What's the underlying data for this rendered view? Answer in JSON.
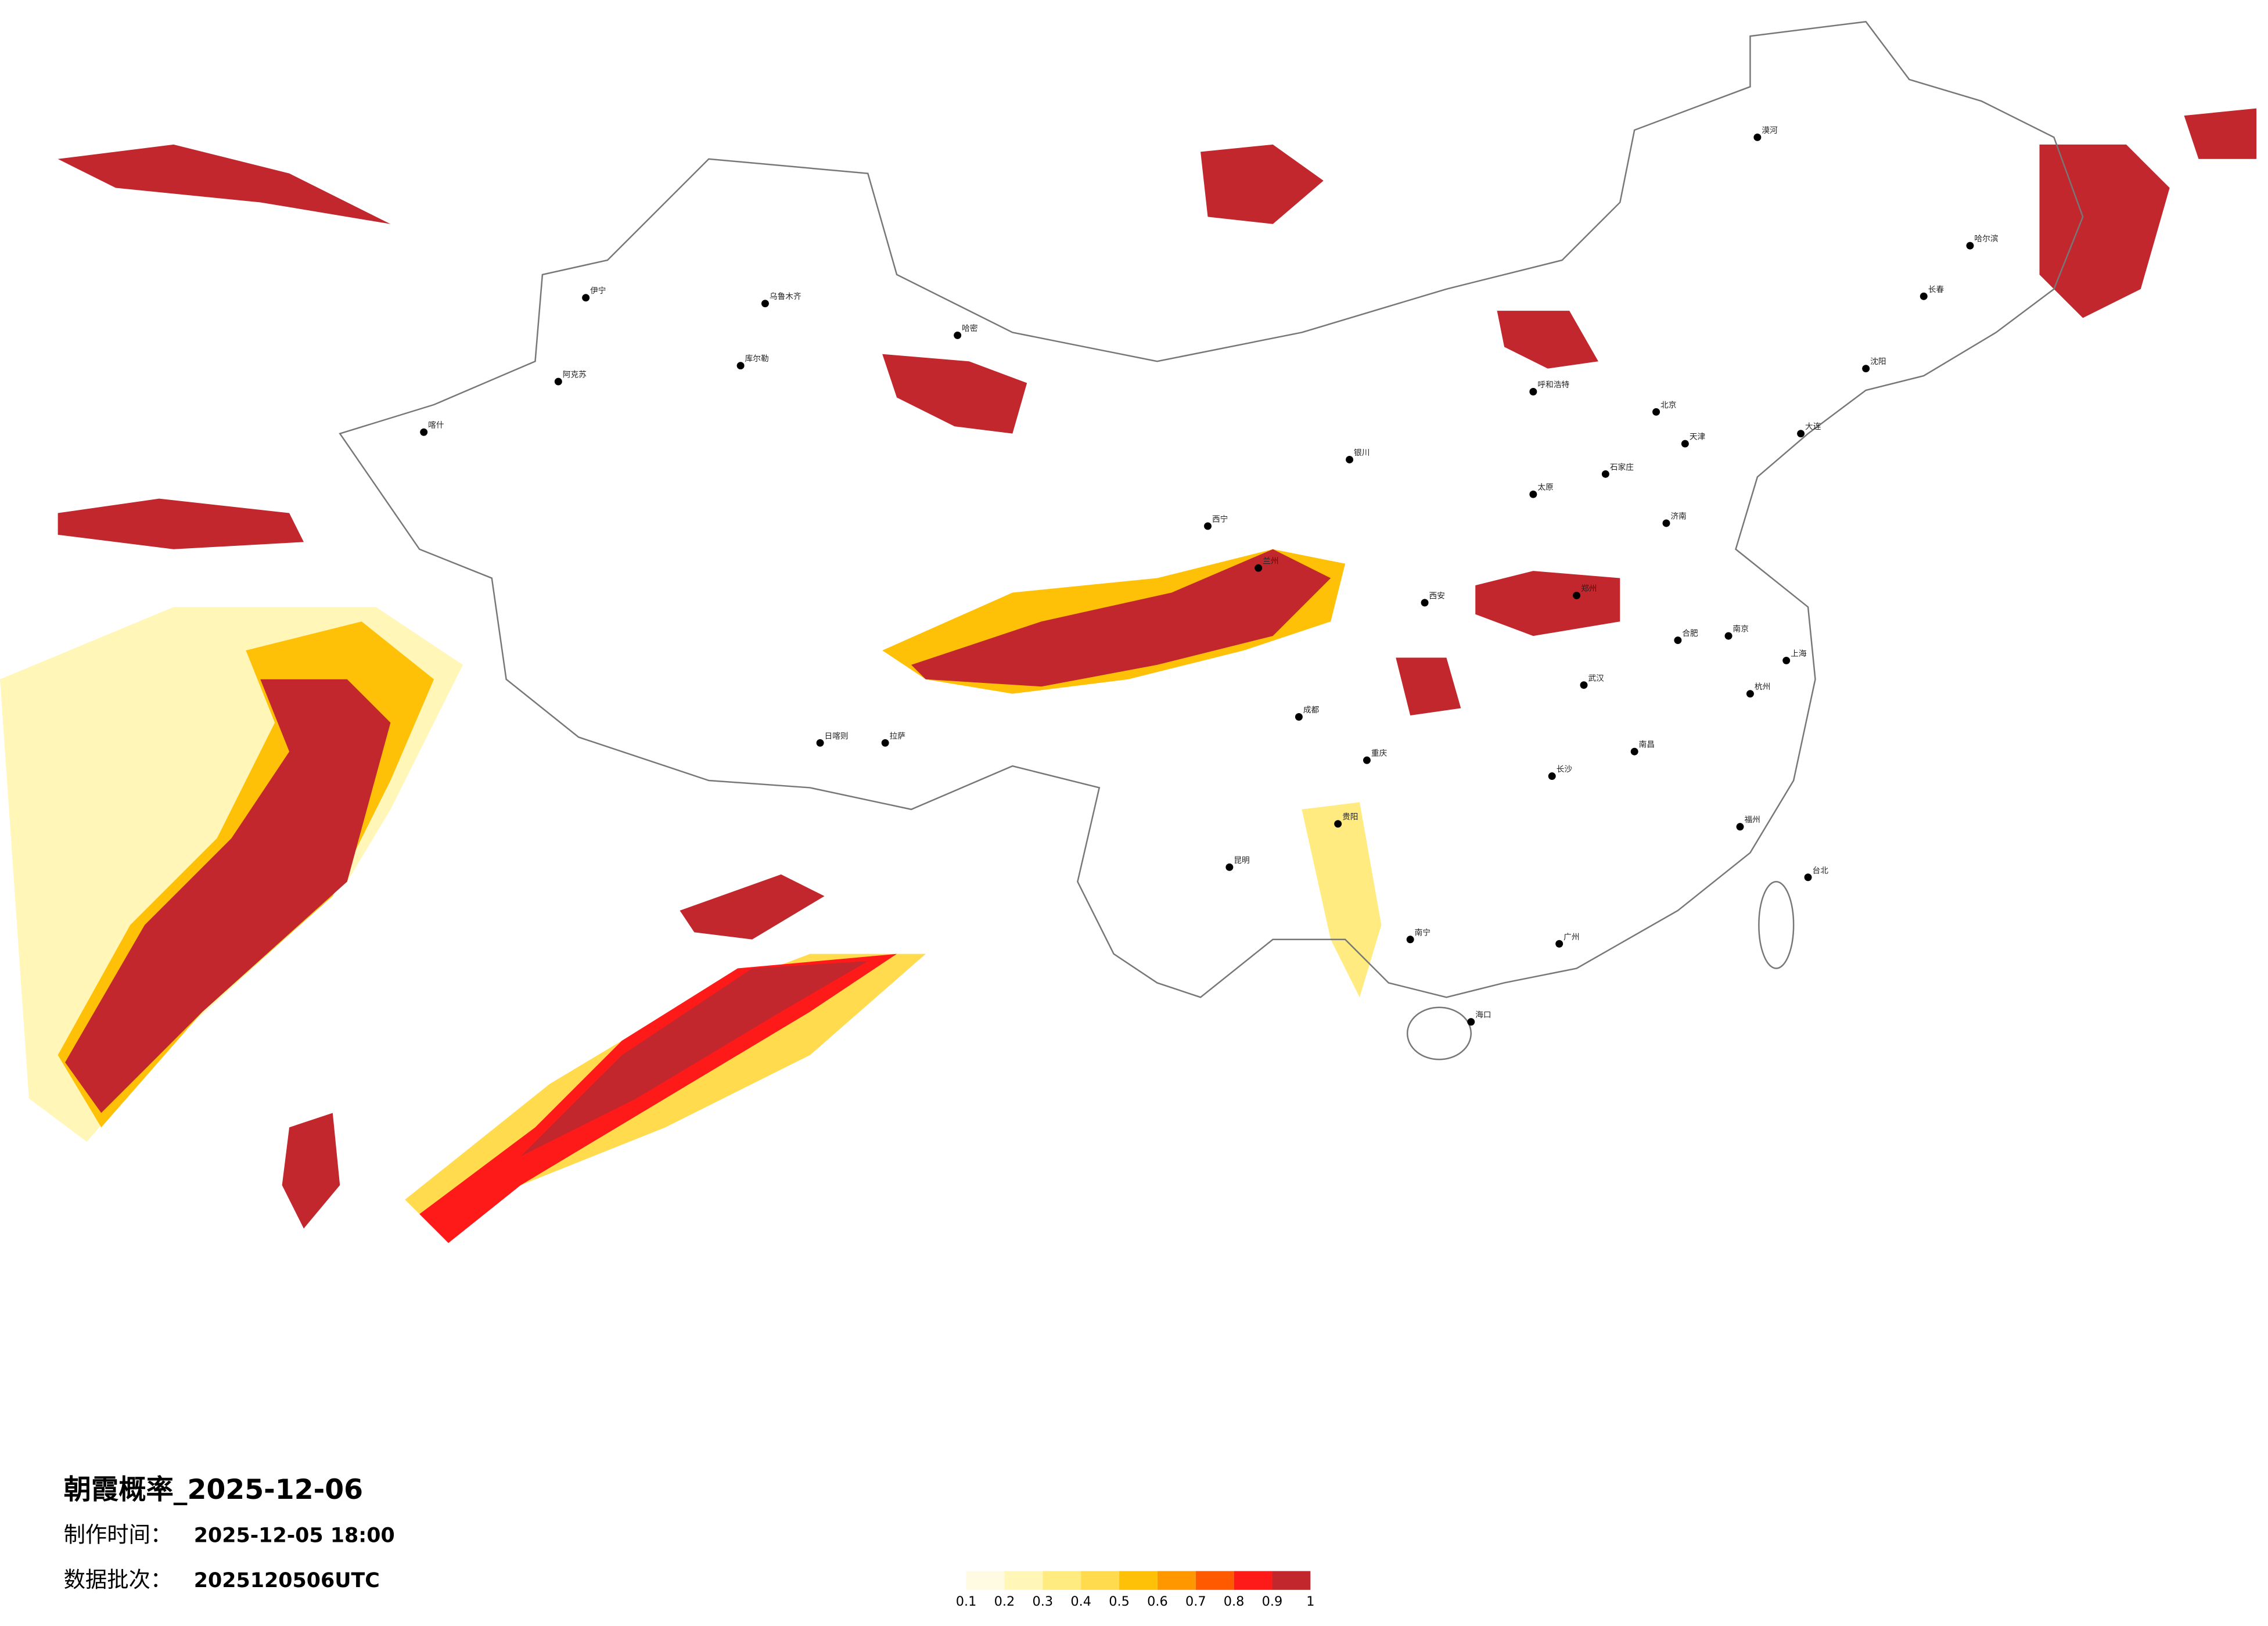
{
  "title": "朝霞概率_2025-12-06",
  "issue_time": {
    "label": "制作时间：",
    "value": "2025-12-05 18:00"
  },
  "batch": {
    "label": "数据批次：",
    "value": "2025120506UTC"
  },
  "legend": {
    "ticks": [
      0.1,
      0.2,
      0.3,
      0.4,
      0.5,
      0.6,
      0.7,
      0.8,
      0.9,
      1
    ],
    "colors": [
      "#fffbe3",
      "#fff6b8",
      "#ffeb80",
      "#ffdb4d",
      "#ffc107",
      "#ff9800",
      "#ff5a00",
      "#ff1a1a",
      "#c1272d"
    ]
  },
  "cities": [
    "乌鲁木齐",
    "伊宁",
    "阿克苏",
    "喀什",
    "库尔勒",
    "哈密",
    "拉萨",
    "日喀则",
    "西宁",
    "兰州",
    "银川",
    "呼和浩特",
    "北京",
    "天津",
    "石家庄",
    "太原",
    "济南",
    "郑州",
    "西安",
    "成都",
    "重庆",
    "武汉",
    "长沙",
    "南昌",
    "合肥",
    "南京",
    "上海",
    "杭州",
    "福州",
    "广州",
    "南宁",
    "海口",
    "昆明",
    "贵阳",
    "哈尔滨",
    "长春",
    "沈阳",
    "大连",
    "台北",
    "漠河"
  ]
}
